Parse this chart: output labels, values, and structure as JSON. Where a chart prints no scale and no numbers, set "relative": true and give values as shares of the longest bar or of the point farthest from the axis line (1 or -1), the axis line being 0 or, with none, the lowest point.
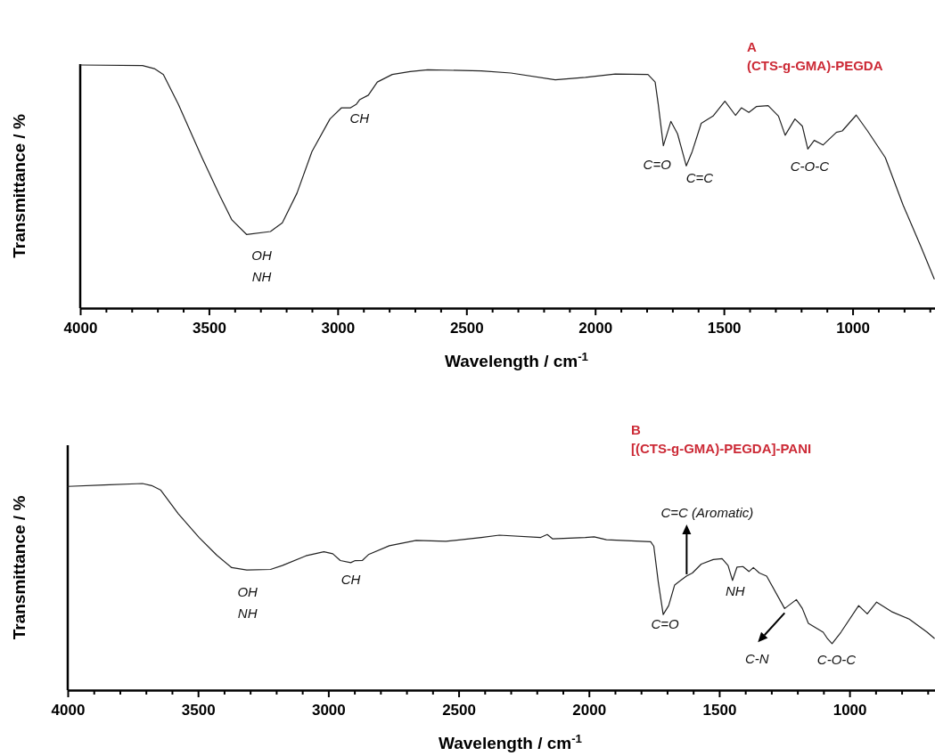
{
  "chart_data": [
    {
      "type": "line",
      "title": "A",
      "subtitle": "(CTS-g-GMA)-PEGDA",
      "xlabel": "Wavelength / cm$^{-1}$",
      "ylabel": "Transmittance / %",
      "relative": true,
      "xlim": [
        4000,
        680
      ],
      "xticks": [
        4000,
        {
          "value": 3900,
          "label": null
        },
        {
          "value": 3800,
          "label": null
        },
        {
          "value": 3700,
          "label": null
        },
        {
          "value": 3600,
          "label": null
        },
        3500,
        {
          "value": 3400,
          "label": null
        },
        {
          "value": 3300,
          "label": null
        },
        {
          "value": 3200,
          "label": null
        },
        {
          "value": 3100,
          "label": null
        },
        3000,
        {
          "value": 2900,
          "label": null
        },
        {
          "value": 2800,
          "label": null
        },
        {
          "value": 2700,
          "label": null
        },
        {
          "value": 2600,
          "label": null
        },
        2500,
        {
          "value": 2400,
          "label": null
        },
        {
          "value": 2300,
          "label": null
        },
        {
          "value": 2200,
          "label": null
        },
        {
          "value": 2100,
          "label": null
        },
        2000,
        {
          "value": 1900,
          "label": null
        },
        {
          "value": 1800,
          "label": null
        },
        {
          "value": 1700,
          "label": null
        },
        {
          "value": 1600,
          "label": null
        },
        1500,
        {
          "value": 1400,
          "label": null
        },
        {
          "value": 1300,
          "label": null
        },
        {
          "value": 1200,
          "label": null
        },
        {
          "value": 1100,
          "label": null
        },
        1000,
        {
          "value": 900,
          "label": null
        },
        {
          "value": 800,
          "label": null
        },
        {
          "value": 700,
          "label": null
        }
      ],
      "series": [
        {
          "color": "#222222",
          "x": [
            4000,
            3758,
            3712,
            3677,
            3619,
            3527,
            3457,
            3411,
            3354,
            3261,
            3215,
            3158,
            3100,
            3030,
            2985,
            2950,
            2927,
            2915,
            2881,
            2846,
            2788,
            2719,
            2650,
            2442,
            2327,
            2155,
            2038,
            1922,
            1795,
            1767,
            1755,
            1735,
            1706,
            1680,
            1646,
            1623,
            1588,
            1542,
            1496,
            1455,
            1432,
            1403,
            1374,
            1328,
            1288,
            1262,
            1224,
            1195,
            1174,
            1149,
            1115,
            1063,
            1040,
            986,
            942,
            873,
            804,
            735,
            683
          ],
          "values": [
            1.0,
            0.998,
            0.985,
            0.961,
            0.839,
            0.619,
            0.461,
            0.363,
            0.303,
            0.315,
            0.351,
            0.473,
            0.644,
            0.778,
            0.824,
            0.824,
            0.839,
            0.857,
            0.876,
            0.93,
            0.961,
            0.973,
            0.98,
            0.976,
            0.967,
            0.939,
            0.949,
            0.963,
            0.961,
            0.93,
            0.839,
            0.668,
            0.768,
            0.717,
            0.585,
            0.644,
            0.76,
            0.79,
            0.851,
            0.793,
            0.824,
            0.805,
            0.829,
            0.833,
            0.79,
            0.711,
            0.778,
            0.748,
            0.654,
            0.69,
            0.671,
            0.723,
            0.729,
            0.794,
            0.729,
            0.619,
            0.424,
            0.254,
            0.12
          ]
        }
      ],
      "annotations": [
        {
          "text": "OH\nNH",
          "x": 3330,
          "y": 0.303
        },
        {
          "text": "CH",
          "x": 2950,
          "y": 0.824
        },
        {
          "text": "C=O",
          "x": 1735,
          "y": 0.668
        },
        {
          "text": "C=C",
          "x": 1646,
          "y": 0.585
        },
        {
          "text": "C-O-C",
          "x": 1174,
          "y": 0.654
        }
      ]
    },
    {
      "type": "line",
      "title": "B",
      "subtitle": "[(CTS-g-GMA)-PEGDA]-PANI",
      "xlabel": "Wavelength / cm$^{-1}$",
      "ylabel": "Transmittance / %",
      "relative": true,
      "xlim": [
        4000,
        672
      ],
      "xticks": [
        4000,
        {
          "value": 3900,
          "label": null
        },
        {
          "value": 3800,
          "label": null
        },
        {
          "value": 3700,
          "label": null
        },
        {
          "value": 3600,
          "label": null
        },
        3500,
        {
          "value": 3400,
          "label": null
        },
        {
          "value": 3300,
          "label": null
        },
        {
          "value": 3200,
          "label": null
        },
        {
          "value": 3100,
          "label": null
        },
        3000,
        {
          "value": 2900,
          "label": null
        },
        {
          "value": 2800,
          "label": null
        },
        {
          "value": 2700,
          "label": null
        },
        {
          "value": 2600,
          "label": null
        },
        2500,
        {
          "value": 2400,
          "label": null
        },
        {
          "value": 2300,
          "label": null
        },
        {
          "value": 2200,
          "label": null
        },
        {
          "value": 2100,
          "label": null
        },
        2000,
        {
          "value": 1900,
          "label": null
        },
        {
          "value": 1800,
          "label": null
        },
        {
          "value": 1700,
          "label": null
        },
        {
          "value": 1600,
          "label": null
        },
        1500,
        {
          "value": 1400,
          "label": null
        },
        {
          "value": 1300,
          "label": null
        },
        {
          "value": 1200,
          "label": null
        },
        {
          "value": 1100,
          "label": null
        },
        1000,
        {
          "value": 900,
          "label": null
        },
        {
          "value": 800,
          "label": null
        },
        {
          "value": 700,
          "label": null
        }
      ],
      "series": [
        {
          "color": "#222222",
          "x": [
            4000,
            3861,
            3713,
            3678,
            3644,
            3576,
            3496,
            3428,
            3371,
            3313,
            3222,
            3177,
            3086,
            3017,
            2983,
            2954,
            2914,
            2897,
            2869,
            2846,
            2766,
            2663,
            2549,
            2413,
            2344,
            2185,
            2160,
            2139,
            2014,
            1980,
            1933,
            1763,
            1751,
            1734,
            1715,
            1694,
            1671,
            1626,
            1603,
            1569,
            1523,
            1489,
            1466,
            1449,
            1432,
            1409,
            1386,
            1369,
            1346,
            1318,
            1249,
            1204,
            1181,
            1158,
            1101,
            1084,
            1067,
            1033,
            965,
            932,
            896,
            839,
            771,
            702,
            675
          ],
          "values": [
            0.986,
            0.993,
            1.0,
            0.99,
            0.969,
            0.854,
            0.739,
            0.653,
            0.593,
            0.581,
            0.584,
            0.603,
            0.65,
            0.67,
            0.66,
            0.627,
            0.617,
            0.627,
            0.628,
            0.656,
            0.699,
            0.725,
            0.72,
            0.739,
            0.75,
            0.739,
            0.753,
            0.732,
            0.739,
            0.742,
            0.728,
            0.718,
            0.696,
            0.524,
            0.366,
            0.409,
            0.509,
            0.552,
            0.567,
            0.61,
            0.632,
            0.636,
            0.603,
            0.531,
            0.595,
            0.598,
            0.574,
            0.593,
            0.567,
            0.552,
            0.395,
            0.438,
            0.395,
            0.323,
            0.28,
            0.248,
            0.225,
            0.28,
            0.409,
            0.369,
            0.426,
            0.38,
            0.344,
            0.28,
            0.251
          ]
        }
      ],
      "annotations": [
        {
          "text": "OH\nNH",
          "x": 3300,
          "y": 0.581
        },
        {
          "text": "CH",
          "x": 2914,
          "y": 0.617
        },
        {
          "text": "C=C (Aromatic)",
          "x": 1625,
          "y": 0.552
        },
        {
          "text": "C=O",
          "x": 1715,
          "y": 0.366
        },
        {
          "text": "NH",
          "x": 1449,
          "y": 0.531
        },
        {
          "text": "C-N",
          "x": 1249,
          "y": 0.395
        },
        {
          "text": "C-O-C",
          "x": 1067,
          "y": 0.225
        }
      ]
    }
  ]
}
